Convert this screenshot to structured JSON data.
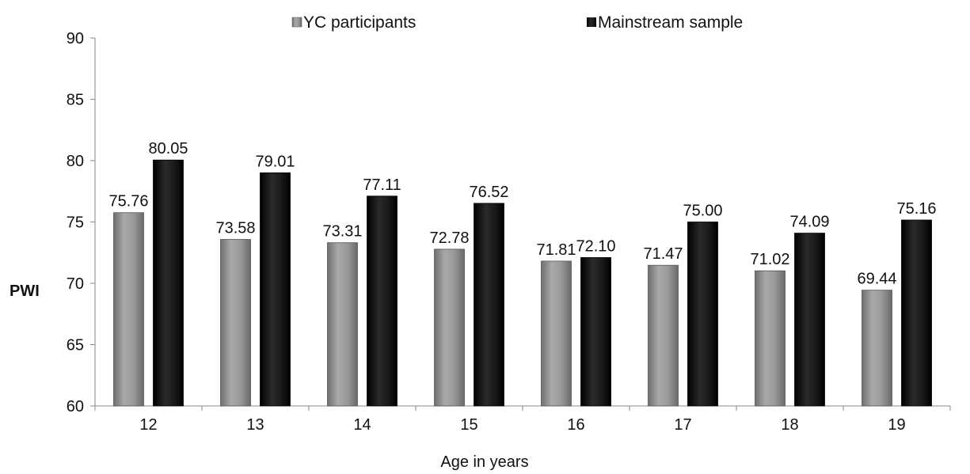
{
  "chart_data": {
    "type": "bar",
    "title": "",
    "xlabel": "Age in years",
    "ylabel": "PWI",
    "ylim": [
      60,
      90
    ],
    "yticks": [
      60,
      65,
      70,
      75,
      80,
      85,
      90
    ],
    "grid": false,
    "legend_position": "top",
    "categories": [
      "12",
      "13",
      "14",
      "15",
      "16",
      "17",
      "18",
      "19"
    ],
    "series": [
      {
        "name": "YC participants",
        "color": "#8a8a8a",
        "values": [
          75.76,
          73.58,
          73.31,
          72.78,
          71.81,
          71.47,
          71.02,
          69.44
        ],
        "labels": [
          "75.76",
          "73.58",
          "73.31",
          "72.78",
          "71.81",
          "71.47",
          "71.02",
          "69.44"
        ]
      },
      {
        "name": "Mainstream sample",
        "color": "#111111",
        "values": [
          80.05,
          79.01,
          77.11,
          76.52,
          72.1,
          75.0,
          74.09,
          75.16
        ],
        "labels": [
          "80.05",
          "79.01",
          "77.11",
          "76.52",
          "72.10",
          "75.00",
          "74.09",
          "75.16"
        ]
      }
    ]
  }
}
